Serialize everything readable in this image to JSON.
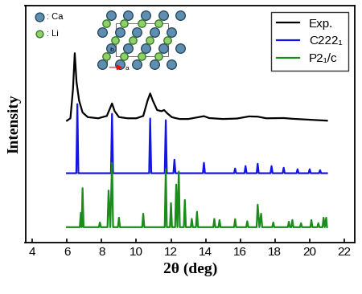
{
  "chart_data": {
    "type": "line",
    "x_label": "2θ (deg)",
    "y_label": "Intensity",
    "xlim": [
      3.6,
      22.6
    ],
    "xticks": [
      4,
      6,
      8,
      10,
      12,
      14,
      16,
      18,
      20,
      22
    ],
    "ylim": [
      0,
      100
    ],
    "yticks": [],
    "tick_labels": "x",
    "legend": "upper right",
    "series": [
      {
        "name": "Exp.",
        "color": "#000000",
        "x": [
          6.0,
          6.2,
          6.35,
          6.45,
          6.55,
          6.7,
          6.9,
          7.2,
          7.8,
          8.3,
          8.5,
          8.6,
          8.75,
          9.0,
          9.5,
          10.0,
          10.4,
          10.65,
          10.8,
          10.95,
          11.2,
          11.45,
          11.6,
          11.8,
          12.05,
          12.2,
          12.5,
          13.0,
          13.6,
          13.9,
          14.2,
          15.0,
          15.8,
          16.5,
          17.0,
          17.5,
          18.5,
          19.0,
          20.0,
          21.0
        ],
        "values": [
          51.5,
          52.5,
          65,
          80,
          68,
          60,
          55,
          53,
          52.5,
          53.5,
          57,
          58.8,
          55.5,
          53,
          52.5,
          52.5,
          53.5,
          60,
          63,
          60,
          56,
          55.5,
          56,
          54.5,
          53,
          52.7,
          52.2,
          52.2,
          53,
          53.4,
          52.6,
          52.2,
          52.4,
          53.3,
          53.2,
          52.5,
          52.6,
          52.3,
          51.9,
          51.5
        ]
      },
      {
        "name": "C222₁",
        "color": "#1414e6",
        "x": [
          6.0,
          6.54,
          6.6,
          6.66,
          8.54,
          8.6,
          8.66,
          10.74,
          10.8,
          10.86,
          11.64,
          11.7,
          11.76,
          12.14,
          12.2,
          12.26,
          13.84,
          13.9,
          13.96,
          15.64,
          15.7,
          15.76,
          16.24,
          16.3,
          16.36,
          16.94,
          17.0,
          17.06,
          17.74,
          17.8,
          17.86,
          18.44,
          18.5,
          18.56,
          19.24,
          19.3,
          19.36,
          19.94,
          20.0,
          20.06,
          20.54,
          20.6,
          20.66,
          21.0
        ],
        "values": [
          29.3,
          29.3,
          58.5,
          29.3,
          29.3,
          54.4,
          29.3,
          29.3,
          52.4,
          29.3,
          29.3,
          51.7,
          29.3,
          29.3,
          35.0,
          29.3,
          29.3,
          33.7,
          29.3,
          29.3,
          31.3,
          29.3,
          29.3,
          32.3,
          29.3,
          29.3,
          33.3,
          29.3,
          29.3,
          32.3,
          29.3,
          29.3,
          31.6,
          29.3,
          29.3,
          31.0,
          29.3,
          29.3,
          31.0,
          29.3,
          29.3,
          30.6,
          29.3,
          29.3
        ]
      },
      {
        "name": "P2₁/c",
        "color": "#1a8c1a",
        "x": [
          6.0,
          6.74,
          6.8,
          6.85,
          6.9,
          6.96,
          7.84,
          7.9,
          7.96,
          8.34,
          8.4,
          8.5,
          8.6,
          8.66,
          8.94,
          9.0,
          9.06,
          10.34,
          10.4,
          10.46,
          11.64,
          11.7,
          11.76,
          11.94,
          12.0,
          12.06,
          12.24,
          12.3,
          12.37,
          12.45,
          12.51,
          12.74,
          12.8,
          12.86,
          13.14,
          13.2,
          13.26,
          13.44,
          13.5,
          13.56,
          14.44,
          14.5,
          14.56,
          14.74,
          14.8,
          14.86,
          15.64,
          15.7,
          15.76,
          16.34,
          16.4,
          16.46,
          16.94,
          17.0,
          17.1,
          17.2,
          17.26,
          17.84,
          17.9,
          17.96,
          18.74,
          18.8,
          18.86,
          18.94,
          19.0,
          19.06,
          19.44,
          19.5,
          19.56,
          20.04,
          20.1,
          20.16,
          20.44,
          20.5,
          20.56,
          20.74,
          20.8,
          20.87,
          20.95,
          21.0
        ],
        "values": [
          6.5,
          6.5,
          12.6,
          6.5,
          23.0,
          6.5,
          6.5,
          8.5,
          6.5,
          6.5,
          22.0,
          6.5,
          33.7,
          6.5,
          6.5,
          10.5,
          6.5,
          6.5,
          12.2,
          6.5,
          6.5,
          31.0,
          6.5,
          6.5,
          16.7,
          6.5,
          6.5,
          24.5,
          6.5,
          30.0,
          6.5,
          6.5,
          18.0,
          6.5,
          6.5,
          10.0,
          6.5,
          6.5,
          13.0,
          6.5,
          6.5,
          10.0,
          6.5,
          6.5,
          9.5,
          6.5,
          6.5,
          9.9,
          6.5,
          6.5,
          9.0,
          6.5,
          6.5,
          16.0,
          6.5,
          12.2,
          6.5,
          6.5,
          8.5,
          6.5,
          6.5,
          8.8,
          6.5,
          6.5,
          9.5,
          6.5,
          6.5,
          8.2,
          6.5,
          6.5,
          9.5,
          6.5,
          6.5,
          8.2,
          6.5,
          6.5,
          10.5,
          6.5,
          10.5,
          6.5
        ]
      }
    ],
    "inset": {
      "atom_labels": [
        ": Ca",
        ": Li"
      ],
      "axis_labels": [
        "b",
        "a"
      ]
    }
  }
}
